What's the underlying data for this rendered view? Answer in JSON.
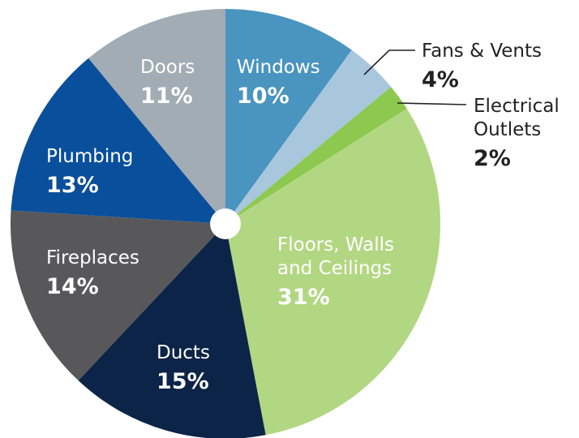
{
  "chart_data": {
    "type": "pie",
    "start_angle_deg": 0,
    "direction": "clockwise",
    "slices": [
      {
        "key": "windows",
        "label_lines": [
          "Windows"
        ],
        "value": 10,
        "value_label": "10%",
        "color": "#4a94c0",
        "text_color": "#ffffff",
        "label_placement": "inside"
      },
      {
        "key": "fans",
        "label_lines": [
          "Fans & Vents"
        ],
        "value": 4,
        "value_label": "4%",
        "color": "#a8c6dc",
        "text_color": "#222222",
        "label_placement": "outside"
      },
      {
        "key": "electrical",
        "label_lines": [
          "Electrical",
          "Outlets"
        ],
        "value": 2,
        "value_label": "2%",
        "color": "#8dc84f",
        "text_color": "#222222",
        "label_placement": "outside"
      },
      {
        "key": "floors",
        "label_lines": [
          "Floors, Walls",
          "and Ceilings"
        ],
        "value": 31,
        "value_label": "31%",
        "color": "#b2d782",
        "text_color": "#ffffff",
        "label_placement": "inside"
      },
      {
        "key": "ducts",
        "label_lines": [
          "Ducts"
        ],
        "value": 15,
        "value_label": "15%",
        "color": "#0c2447",
        "text_color": "#ffffff",
        "label_placement": "inside"
      },
      {
        "key": "fireplaces",
        "label_lines": [
          "Fireplaces"
        ],
        "value": 14,
        "value_label": "14%",
        "color": "#58585a",
        "text_color": "#ffffff",
        "label_placement": "inside"
      },
      {
        "key": "plumbing",
        "label_lines": [
          "Plumbing"
        ],
        "value": 13,
        "value_label": "13%",
        "color": "#0a4f9c",
        "text_color": "#ffffff",
        "label_placement": "inside"
      },
      {
        "key": "doors",
        "label_lines": [
          "Doors"
        ],
        "value": 11,
        "value_label": "11%",
        "color": "#a2acb4",
        "text_color": "#ffffff",
        "label_placement": "inside"
      }
    ],
    "center_hole_color": "#ffffff",
    "title": "",
    "legend": "none"
  }
}
